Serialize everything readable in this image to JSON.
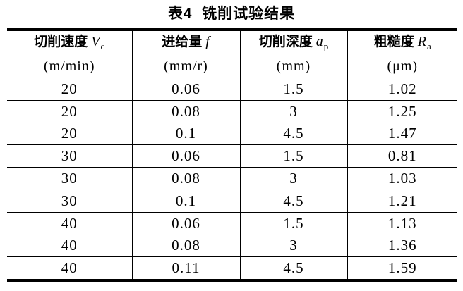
{
  "page": {
    "background": "#ffffff",
    "text_color": "#000000",
    "rule_color": "#000000"
  },
  "title": "表4  铣削试验结果",
  "table": {
    "columns": [
      {
        "name": "切削速度",
        "symbol": "V",
        "sub": "c",
        "unit": "(m/min)"
      },
      {
        "name": "进给量",
        "symbol": "f",
        "sub": "",
        "unit": "(mm/r)"
      },
      {
        "name": "切削深度",
        "symbol": "a",
        "sub": "p",
        "unit": "(mm)"
      },
      {
        "name": "粗糙度",
        "symbol": "R",
        "sub": "a",
        "unit": "(μm)"
      }
    ],
    "rows": [
      [
        "20",
        "0.06",
        "1.5",
        "1.02"
      ],
      [
        "20",
        "0.08",
        "3",
        "1.25"
      ],
      [
        "20",
        "0.1",
        "4.5",
        "1.47"
      ],
      [
        "30",
        "0.06",
        "1.5",
        "0.81"
      ],
      [
        "30",
        "0.08",
        "3",
        "1.03"
      ],
      [
        "30",
        "0.1",
        "4.5",
        "1.21"
      ],
      [
        "40",
        "0.06",
        "1.5",
        "1.13"
      ],
      [
        "40",
        "0.08",
        "3",
        "1.36"
      ],
      [
        "40",
        "0.11",
        "4.5",
        "1.59"
      ]
    ]
  }
}
